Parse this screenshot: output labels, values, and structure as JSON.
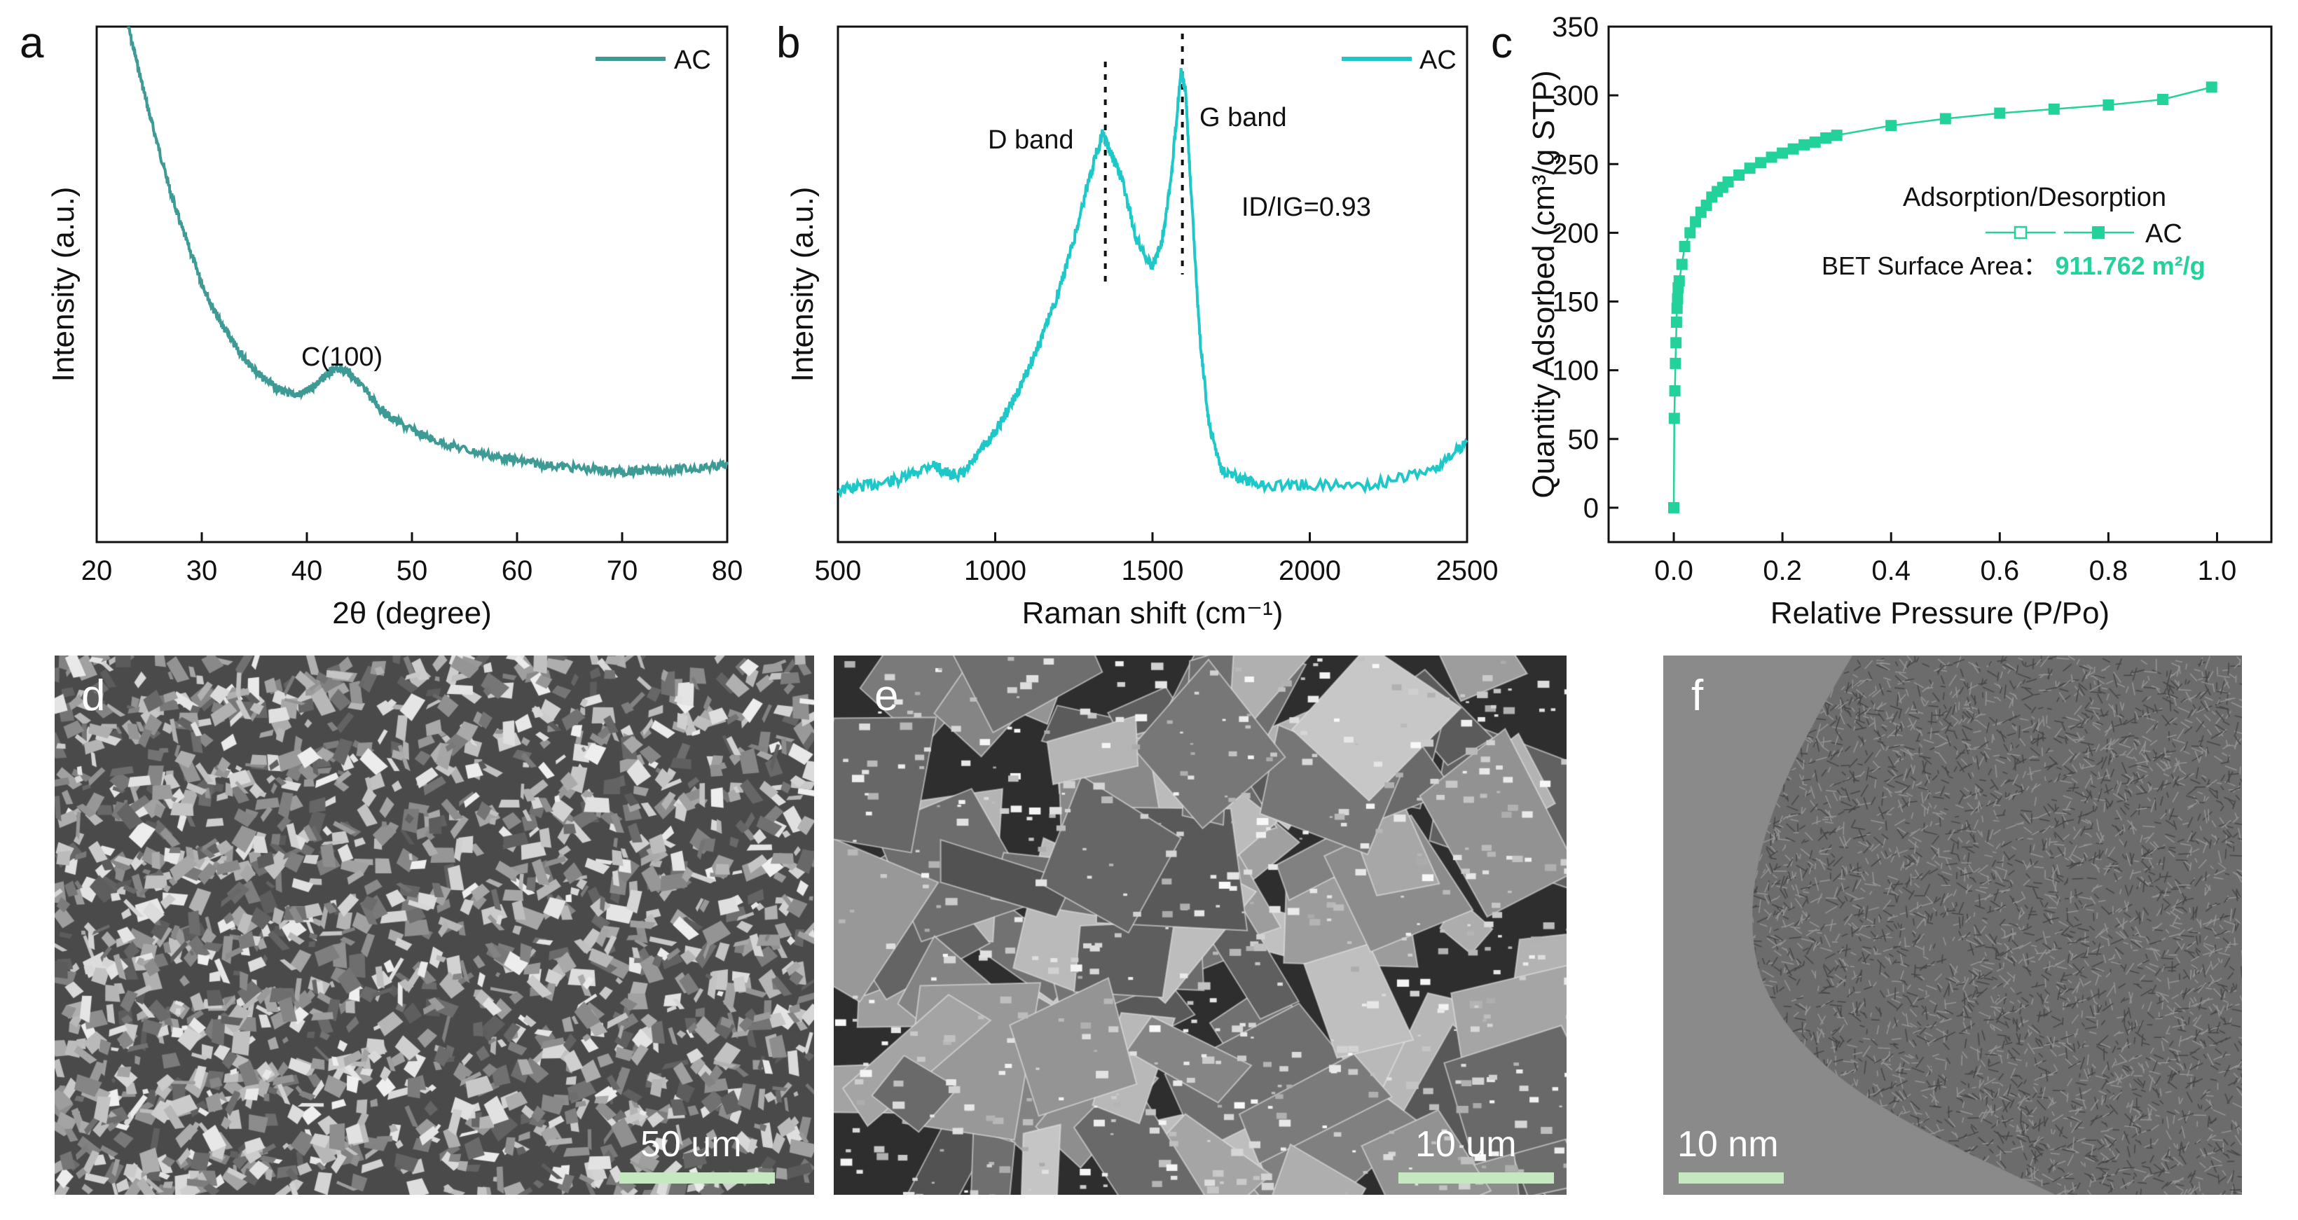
{
  "chart_data": [
    {
      "panel": "a",
      "type": "line",
      "xlabel": "2θ (degree)",
      "ylabel": "Intensity (a.u.)",
      "xlim": [
        20,
        80
      ],
      "xticks": [
        "20",
        "30",
        "40",
        "50",
        "60",
        "70",
        "80"
      ],
      "color": "#3d9a94",
      "legend": "AC",
      "legend_position": "top-right",
      "annotation": "C(100)",
      "series": [
        {
          "name": "AC",
          "x": [
            23,
            24,
            25,
            26,
            27,
            28,
            29,
            30,
            31,
            32,
            33,
            34,
            35,
            36,
            37,
            38,
            39,
            40,
            41,
            42,
            43,
            44,
            45,
            46,
            47,
            48,
            50,
            52,
            55,
            58,
            60,
            62,
            65,
            68,
            70,
            72,
            75,
            78,
            80
          ],
          "y": [
            1.0,
            0.91,
            0.82,
            0.74,
            0.66,
            0.59,
            0.53,
            0.47,
            0.42,
            0.38,
            0.345,
            0.315,
            0.29,
            0.27,
            0.253,
            0.243,
            0.238,
            0.245,
            0.262,
            0.282,
            0.292,
            0.285,
            0.262,
            0.235,
            0.21,
            0.19,
            0.165,
            0.145,
            0.125,
            0.11,
            0.102,
            0.095,
            0.088,
            0.082,
            0.079,
            0.081,
            0.083,
            0.088,
            0.093
          ]
        }
      ]
    },
    {
      "panel": "b",
      "type": "line",
      "xlabel": "Raman shift (cm⁻¹)",
      "ylabel": "Intensity (a.u.)",
      "xlim": [
        500,
        2500
      ],
      "xticks": [
        "500",
        "1000",
        "1500",
        "2000",
        "2500"
      ],
      "color": "#1fc8c8",
      "legend": "AC",
      "legend_position": "top-right",
      "annotations": [
        "D band",
        "G band",
        "ID/IG=0.93"
      ],
      "markers": [
        1350,
        1595
      ],
      "series": [
        {
          "name": "AC",
          "x": [
            500,
            600,
            700,
            800,
            850,
            900,
            950,
            1000,
            1050,
            1100,
            1150,
            1200,
            1250,
            1300,
            1340,
            1370,
            1400,
            1450,
            1500,
            1530,
            1560,
            1590,
            1605,
            1620,
            1650,
            1680,
            1720,
            1780,
            1850,
            2000,
            2200,
            2400,
            2500
          ],
          "y": [
            0.13,
            0.14,
            0.15,
            0.18,
            0.16,
            0.16,
            0.2,
            0.24,
            0.29,
            0.35,
            0.42,
            0.5,
            0.6,
            0.72,
            0.8,
            0.76,
            0.72,
            0.6,
            0.55,
            0.6,
            0.72,
            0.92,
            0.88,
            0.72,
            0.42,
            0.25,
            0.17,
            0.15,
            0.14,
            0.14,
            0.14,
            0.17,
            0.22
          ]
        }
      ]
    },
    {
      "panel": "c",
      "type": "line",
      "xlabel": "Relative Pressure (P/Po)",
      "ylabel": "Quantity Adsorbed (cm³/g STP)",
      "xlim": [
        -0.12,
        1.1
      ],
      "ylim": [
        -25,
        350
      ],
      "xticks": [
        "0.0",
        "0.2",
        "0.4",
        "0.6",
        "0.8",
        "1.0"
      ],
      "yticks": [
        "0",
        "50",
        "100",
        "150",
        "200",
        "250",
        "300",
        "350"
      ],
      "color": "#22d29a",
      "legend_title": "Adsorption/Desorption",
      "legend": "AC",
      "legend_position": "right",
      "bet_label": "BET Surface Area：",
      "bet_value": "911.762 m²/g",
      "series": [
        {
          "name": "AC",
          "x": [
            0.0,
            0.001,
            0.002,
            0.003,
            0.004,
            0.005,
            0.006,
            0.007,
            0.008,
            0.01,
            0.015,
            0.02,
            0.03,
            0.04,
            0.05,
            0.06,
            0.07,
            0.08,
            0.09,
            0.1,
            0.12,
            0.14,
            0.16,
            0.18,
            0.2,
            0.22,
            0.24,
            0.26,
            0.28,
            0.3,
            0.4,
            0.5,
            0.6,
            0.7,
            0.8,
            0.9,
            0.99
          ],
          "y": [
            0,
            65,
            85,
            105,
            120,
            135,
            145,
            152,
            160,
            165,
            177,
            190,
            200,
            208,
            215,
            220,
            226,
            230,
            233,
            237,
            242,
            247,
            251,
            255,
            258,
            261,
            264,
            266,
            269,
            271,
            278,
            283,
            287,
            290,
            293,
            297,
            306
          ]
        }
      ]
    }
  ],
  "images": [
    {
      "panel": "d",
      "scale_label": "50 um"
    },
    {
      "panel": "e",
      "scale_label": "10 um"
    },
    {
      "panel": "f",
      "scale_label": "10 nm"
    }
  ]
}
